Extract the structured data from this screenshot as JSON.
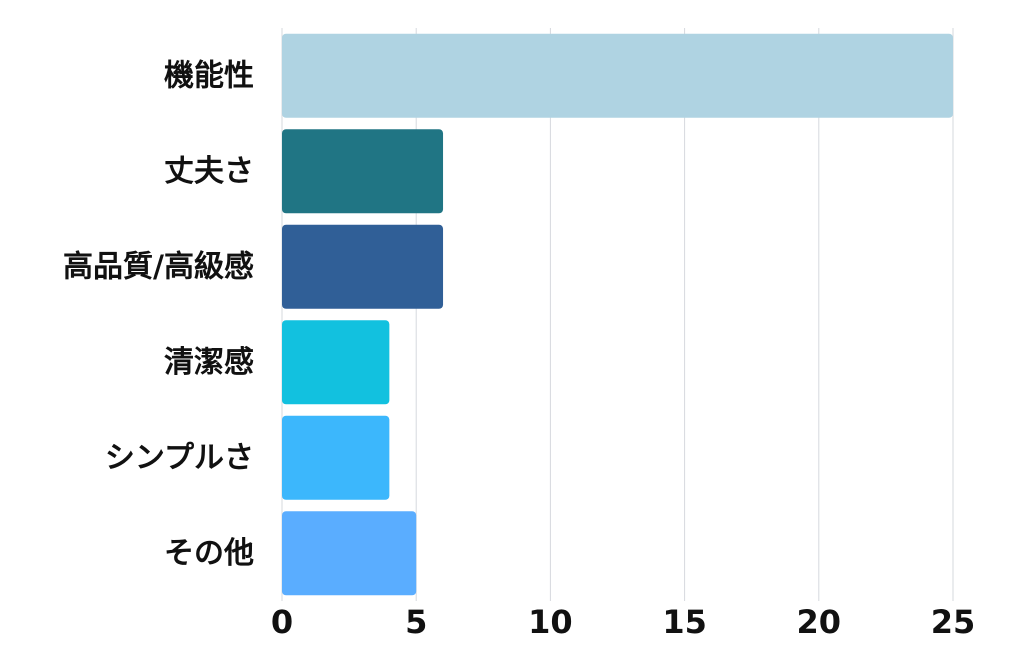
{
  "chart_data": {
    "type": "bar",
    "orientation": "horizontal",
    "categories": [
      "機能性",
      "丈夫さ",
      "高品質/高級感",
      "清潔感",
      "シンプルさ",
      "その他"
    ],
    "values": [
      25,
      6,
      6,
      4,
      4,
      5
    ],
    "colors": [
      "#afd3e2",
      "#207584",
      "#305f97",
      "#12c1df",
      "#3cb7fc",
      "#5aadff"
    ],
    "xlim": [
      0,
      25
    ],
    "x_ticks": [
      "0",
      "5",
      "10",
      "15",
      "20",
      "25"
    ],
    "x_tick_values": [
      0,
      5,
      10,
      15,
      20,
      25
    ],
    "grid": true,
    "title": "",
    "xlabel": "",
    "ylabel": ""
  }
}
